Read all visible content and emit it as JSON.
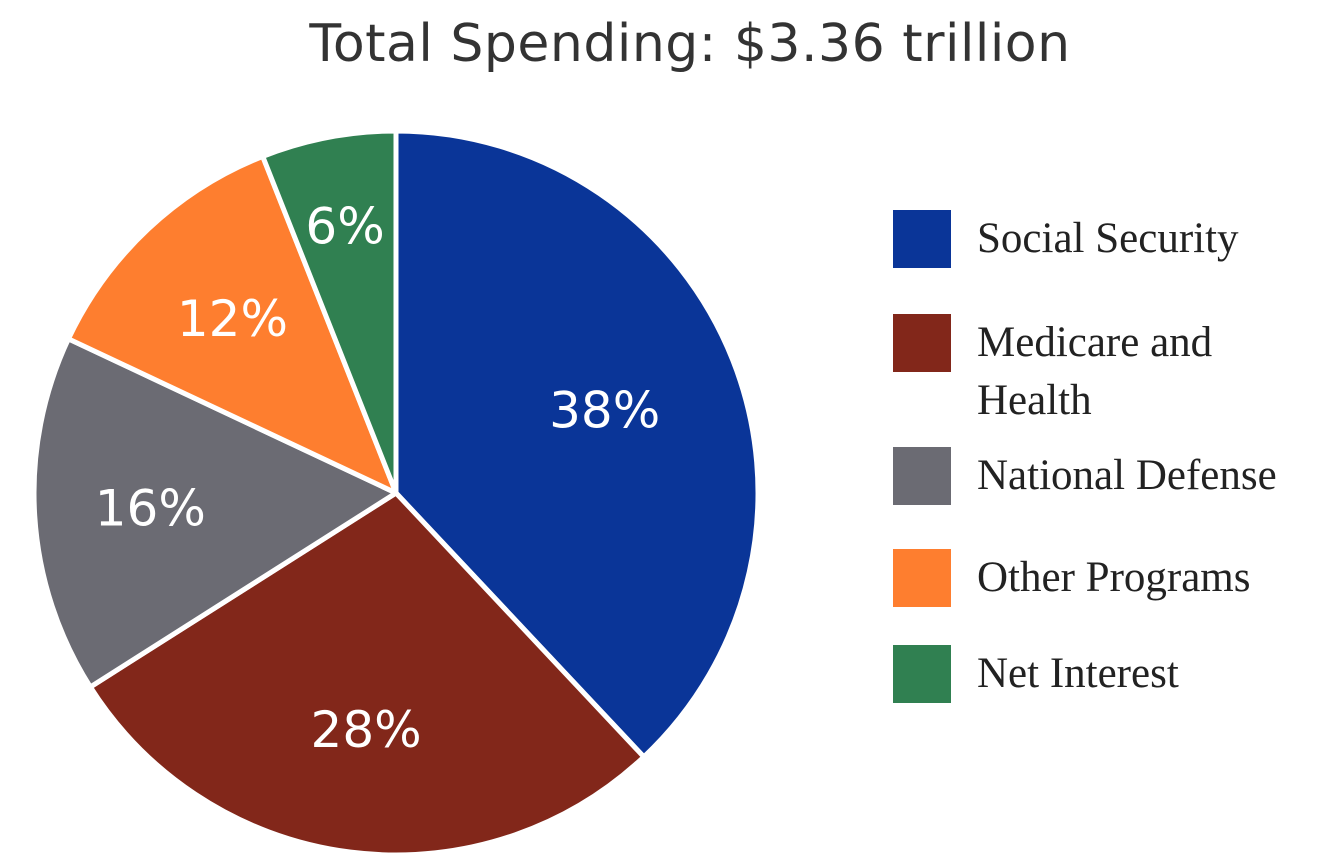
{
  "chart_data": {
    "type": "pie",
    "title": "Total Spending: $3.36 trillion",
    "categories": [
      "Social Security",
      "Medicare and Health",
      "National Defense",
      "Other Programs",
      "Net Interest"
    ],
    "values": [
      38,
      28,
      16,
      12,
      6
    ],
    "labels": [
      "38%",
      "28%",
      "16%",
      "12%",
      "6%"
    ],
    "colors": [
      "#0a3598",
      "#82271a",
      "#6b6b73",
      "#fe7e2f",
      "#308051"
    ],
    "legend": {
      "position": "right",
      "items": [
        {
          "label": "Social Security",
          "color": "#0a3598"
        },
        {
          "label": "Medicare and Health",
          "color": "#82271a"
        },
        {
          "label": "National Defense",
          "color": "#6b6b73"
        },
        {
          "label": "Other Programs",
          "color": "#fe7e2f"
        },
        {
          "label": "Net Interest",
          "color": "#308051"
        }
      ]
    }
  }
}
